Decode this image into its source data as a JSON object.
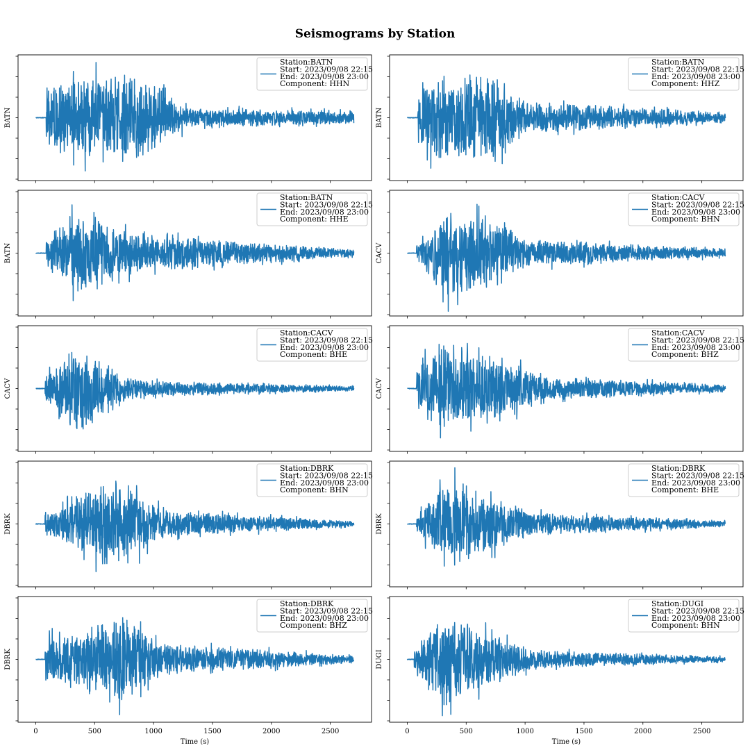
{
  "suptitle": "Seismograms by Station",
  "colors": {
    "trace": "#1f77b4",
    "axes": "#000000"
  },
  "chart_data": [
    {
      "type": "line",
      "ylabel": "BATN",
      "legend": {
        "placement": "upper right",
        "lines": [
          "Station:BATN",
          "Start: 2023/09/08 22:15",
          "End: 2023/09/08 23:00",
          "Component: HHN"
        ]
      },
      "xlim": [
        -150,
        2850
      ],
      "ylim": [
        -1.05,
        1.05
      ],
      "signal": {
        "onset_s": 90,
        "duration_s": 2700,
        "peaks": [
          {
            "t": 100,
            "amp": 0.68
          },
          {
            "t": 420,
            "amp": 0.92
          },
          {
            "t": 610,
            "amp": 0.95
          },
          {
            "t": 860,
            "amp": 0.99
          },
          {
            "t": 1300,
            "amp": 0.22
          },
          {
            "t": 2700,
            "amp": 0.14
          }
        ]
      },
      "xlabel": ""
    },
    {
      "type": "line",
      "ylabel": "BATN",
      "legend": {
        "placement": "upper right",
        "lines": [
          "Station:BATN",
          "Start: 2023/09/08 22:15",
          "End: 2023/09/08 23:00",
          "Component: HHZ"
        ]
      },
      "xlim": [
        -150,
        2850
      ],
      "ylim": [
        -1.05,
        1.05
      ],
      "signal": {
        "onset_s": 90,
        "duration_s": 2700,
        "peaks": [
          {
            "t": 95,
            "amp": 0.82
          },
          {
            "t": 380,
            "amp": 1.0
          },
          {
            "t": 770,
            "amp": 0.92
          },
          {
            "t": 1000,
            "amp": 0.35
          },
          {
            "t": 2700,
            "amp": 0.12
          }
        ]
      },
      "xlabel": ""
    },
    {
      "type": "line",
      "ylabel": "BATN",
      "legend": {
        "placement": "upper right",
        "lines": [
          "Station:BATN",
          "Start: 2023/09/08 22:15",
          "End: 2023/09/08 23:00",
          "Component: HHE"
        ]
      },
      "xlim": [
        -150,
        2850
      ],
      "ylim": [
        -1.05,
        1.05
      ],
      "signal": {
        "onset_s": 90,
        "duration_s": 2700,
        "peaks": [
          {
            "t": 100,
            "amp": 0.32
          },
          {
            "t": 380,
            "amp": 1.0
          },
          {
            "t": 640,
            "amp": 0.6
          },
          {
            "t": 950,
            "amp": 0.4
          },
          {
            "t": 2700,
            "amp": 0.08
          }
        ]
      },
      "xlabel": ""
    },
    {
      "type": "line",
      "ylabel": "CACV",
      "legend": {
        "placement": "upper right",
        "lines": [
          "Station:CACV",
          "Start: 2023/09/08 22:15",
          "End: 2023/09/08 23:00",
          "Component: BHN"
        ]
      },
      "xlim": [
        -150,
        2850
      ],
      "ylim": [
        -1.05,
        1.05
      ],
      "signal": {
        "onset_s": 80,
        "duration_s": 2700,
        "peaks": [
          {
            "t": 90,
            "amp": 0.2
          },
          {
            "t": 340,
            "amp": 0.98
          },
          {
            "t": 800,
            "amp": 0.72
          },
          {
            "t": 1000,
            "amp": 0.3
          },
          {
            "t": 2700,
            "amp": 0.1
          }
        ]
      },
      "xlabel": ""
    },
    {
      "type": "line",
      "ylabel": "CACV",
      "legend": {
        "placement": "upper right",
        "lines": [
          "Station:CACV",
          "Start: 2023/09/08 22:15",
          "End: 2023/09/08 23:00",
          "Component: BHE"
        ]
      },
      "xlim": [
        -150,
        2850
      ],
      "ylim": [
        -1.05,
        1.05
      ],
      "signal": {
        "onset_s": 80,
        "duration_s": 2700,
        "peaks": [
          {
            "t": 90,
            "amp": 0.3
          },
          {
            "t": 350,
            "amp": 1.0
          },
          {
            "t": 700,
            "amp": 0.35
          },
          {
            "t": 900,
            "amp": 0.18
          },
          {
            "t": 2700,
            "amp": 0.05
          }
        ]
      },
      "xlabel": ""
    },
    {
      "type": "line",
      "ylabel": "CACV",
      "legend": {
        "placement": "upper right",
        "lines": [
          "Station:CACV",
          "Start: 2023/09/08 22:15",
          "End: 2023/09/08 23:00",
          "Component: BHZ"
        ]
      },
      "xlim": [
        -150,
        2850
      ],
      "ylim": [
        -1.05,
        1.05
      ],
      "signal": {
        "onset_s": 80,
        "duration_s": 2700,
        "peaks": [
          {
            "t": 90,
            "amp": 0.55
          },
          {
            "t": 350,
            "amp": 1.0
          },
          {
            "t": 900,
            "amp": 0.55
          },
          {
            "t": 1200,
            "amp": 0.25
          },
          {
            "t": 2700,
            "amp": 0.08
          }
        ]
      },
      "xlabel": ""
    },
    {
      "type": "line",
      "ylabel": "DBRK",
      "legend": {
        "placement": "upper right",
        "lines": [
          "Station:DBRK",
          "Start: 2023/09/08 22:15",
          "End: 2023/09/08 23:00",
          "Component: BHN"
        ]
      },
      "xlim": [
        -150,
        2850
      ],
      "ylim": [
        -1.05,
        1.05
      ],
      "signal": {
        "onset_s": 80,
        "duration_s": 2700,
        "peaks": [
          {
            "t": 90,
            "amp": 0.25
          },
          {
            "t": 430,
            "amp": 0.7
          },
          {
            "t": 680,
            "amp": 1.0
          },
          {
            "t": 1100,
            "amp": 0.3
          },
          {
            "t": 2700,
            "amp": 0.06
          }
        ]
      },
      "xlabel": ""
    },
    {
      "type": "line",
      "ylabel": "DBRK",
      "legend": {
        "placement": "upper right",
        "lines": [
          "Station:DBRK",
          "Start: 2023/09/08 22:15",
          "End: 2023/09/08 23:00",
          "Component: BHE"
        ]
      },
      "xlim": [
        -150,
        2850
      ],
      "ylim": [
        -1.05,
        1.05
      ],
      "signal": {
        "onset_s": 80,
        "duration_s": 2700,
        "peaks": [
          {
            "t": 90,
            "amp": 0.22
          },
          {
            "t": 350,
            "amp": 1.0
          },
          {
            "t": 720,
            "amp": 0.6
          },
          {
            "t": 1100,
            "amp": 0.25
          },
          {
            "t": 2700,
            "amp": 0.06
          }
        ]
      },
      "xlabel": ""
    },
    {
      "type": "line",
      "ylabel": "DBRK",
      "legend": {
        "placement": "upper right",
        "lines": [
          "Station:DBRK",
          "Start: 2023/09/08 22:15",
          "End: 2023/09/08 23:00",
          "Component: BHZ"
        ]
      },
      "xlim": [
        -150,
        2850
      ],
      "ylim": [
        -1.05,
        1.05
      ],
      "signal": {
        "onset_s": 80,
        "duration_s": 2700,
        "peaks": [
          {
            "t": 90,
            "amp": 0.6
          },
          {
            "t": 360,
            "amp": 0.55
          },
          {
            "t": 700,
            "amp": 1.0
          },
          {
            "t": 1100,
            "amp": 0.35
          },
          {
            "t": 2700,
            "amp": 0.08
          }
        ]
      },
      "xlabel": "Time (s)"
    },
    {
      "type": "line",
      "ylabel": "DUGI",
      "legend": {
        "placement": "upper right",
        "lines": [
          "Station:DUGI",
          "Start: 2023/09/08 22:15",
          "End: 2023/09/08 23:00",
          "Component: BHN"
        ]
      },
      "xlim": [
        -150,
        2850
      ],
      "ylim": [
        -1.05,
        1.05
      ],
      "signal": {
        "onset_s": 60,
        "duration_s": 2700,
        "peaks": [
          {
            "t": 70,
            "amp": 0.25
          },
          {
            "t": 310,
            "amp": 1.0
          },
          {
            "t": 700,
            "amp": 0.6
          },
          {
            "t": 1100,
            "amp": 0.2
          },
          {
            "t": 2700,
            "amp": 0.06
          }
        ]
      },
      "xlabel": "Time (s)"
    }
  ],
  "xticks": [
    0,
    500,
    1000,
    1500,
    2000,
    2500
  ]
}
